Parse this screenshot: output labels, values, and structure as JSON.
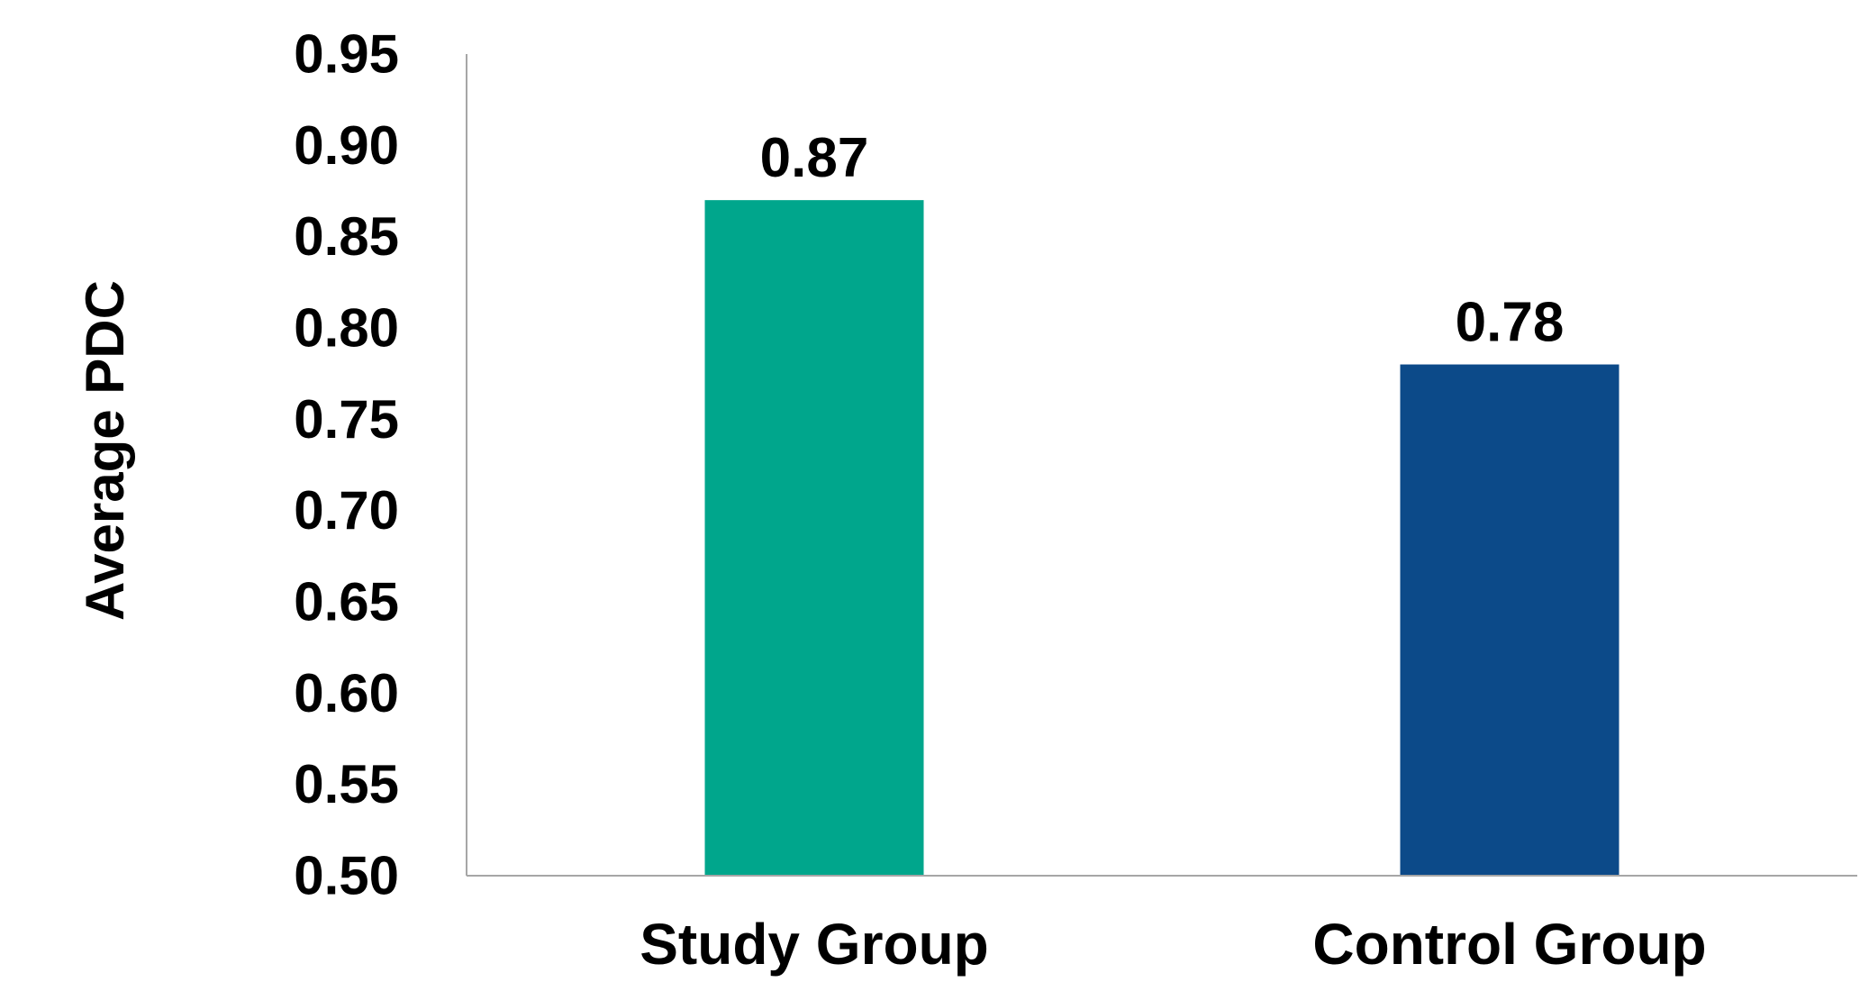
{
  "chart_data": {
    "type": "bar",
    "categories": [
      "Study Group",
      "Control Group"
    ],
    "values": [
      0.87,
      0.78
    ],
    "data_labels": [
      "0.87",
      "0.78"
    ],
    "colors": [
      "#00A68C",
      "#0C4A89"
    ],
    "title": "",
    "xlabel": "",
    "ylabel": "Average PDC",
    "ylim": [
      0.5,
      0.95
    ],
    "yticks": [
      "0.50",
      "0.55",
      "0.60",
      "0.65",
      "0.70",
      "0.75",
      "0.80",
      "0.85",
      "0.90",
      "0.95"
    ],
    "grid": false,
    "legend": "none"
  }
}
